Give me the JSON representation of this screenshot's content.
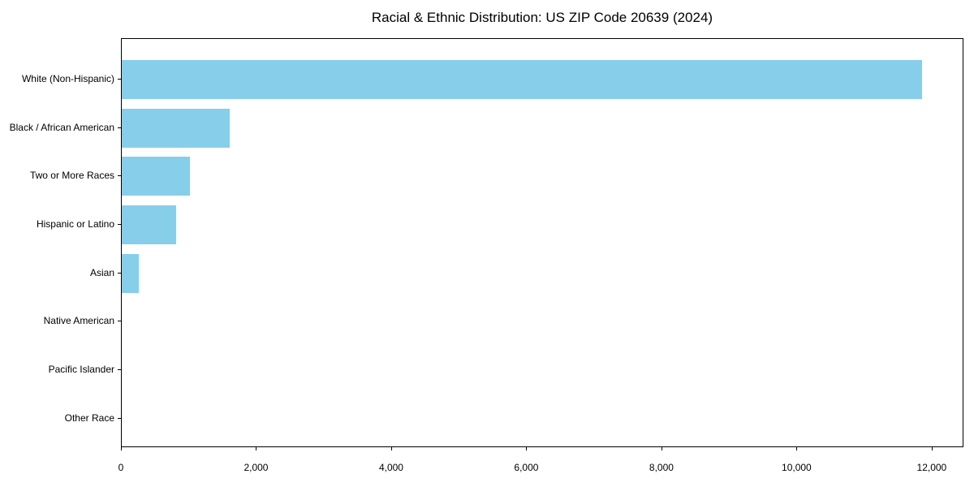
{
  "chart_data": {
    "type": "bar",
    "orientation": "horizontal",
    "title": "Racial & Ethnic Distribution: US ZIP Code 20639 (2024)",
    "categories": [
      "White (Non-Hispanic)",
      "Black / African American",
      "Two or More Races",
      "Hispanic or Latino",
      "Asian",
      "Native American",
      "Pacific Islander",
      "Other Race"
    ],
    "values": [
      11850,
      1600,
      1010,
      800,
      250,
      0,
      0,
      0
    ],
    "xlabel": "",
    "ylabel": "",
    "xlim": [
      0,
      12470
    ],
    "x_ticks": [
      0,
      2000,
      4000,
      6000,
      8000,
      10000,
      12000
    ],
    "x_tick_labels": [
      "0",
      "2,000",
      "4,000",
      "6,000",
      "8,000",
      "10,000",
      "12,000"
    ],
    "bar_color": "#87CEEB",
    "axis_color": "#000000",
    "background_color": "#FFFFFF",
    "grid": false,
    "legend": null
  }
}
